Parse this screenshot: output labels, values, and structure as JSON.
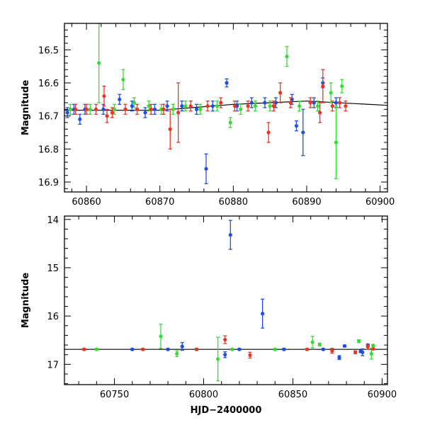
{
  "colors": {
    "blue": "#1f4fe0",
    "green": "#33dd33",
    "red": "#ee3322",
    "black": "#000000"
  },
  "chart_data": [
    {
      "type": "scatter",
      "panel": "top",
      "title": "",
      "xlabel": "",
      "ylabel": "Magnitude",
      "xlim": [
        60857,
        60901
      ],
      "ylim": [
        16.93,
        16.42
      ],
      "y_inverted": true,
      "xticks": [
        60860,
        60870,
        60880,
        60890,
        60900
      ],
      "yticks": [
        16.5,
        16.6,
        16.7,
        16.8,
        16.9
      ],
      "grid": false,
      "legend": "none",
      "trend_line": {
        "x": [
          60857,
          60870,
          60880,
          60890,
          60901
        ],
        "y": [
          16.683,
          16.683,
          16.665,
          16.655,
          16.668
        ]
      },
      "series": [
        {
          "color": "blue",
          "points": [
            [
              60857.4,
              16.69,
              0.015
            ],
            [
              60858.3,
              16.68,
              0.015
            ],
            [
              60859.1,
              16.71,
              0.015
            ],
            [
              60859.8,
              16.68,
              0.015
            ],
            [
              60862.3,
              16.68,
              0.015
            ],
            [
              60864.5,
              16.65,
              0.015
            ],
            [
              60866.2,
              16.67,
              0.015
            ],
            [
              60868.0,
              16.69,
              0.015
            ],
            [
              60869.3,
              16.68,
              0.015
            ],
            [
              60871.0,
              16.67,
              0.015
            ],
            [
              60873.0,
              16.67,
              0.015
            ],
            [
              60875.0,
              16.68,
              0.015
            ],
            [
              60876.3,
              16.86,
              0.045
            ],
            [
              60877.2,
              16.67,
              0.015
            ],
            [
              60879.1,
              16.6,
              0.012
            ],
            [
              60880.5,
              16.67,
              0.015
            ],
            [
              60882.5,
              16.66,
              0.015
            ],
            [
              60884.3,
              16.66,
              0.015
            ],
            [
              60885.8,
              16.66,
              0.015
            ],
            [
              60888.0,
              16.65,
              0.015
            ],
            [
              60888.6,
              16.73,
              0.015
            ],
            [
              60889.5,
              16.75,
              0.07
            ],
            [
              60891.0,
              16.66,
              0.015
            ],
            [
              60892.2,
              16.6,
              0.015
            ],
            [
              60894.0,
              16.66,
              0.015
            ]
          ]
        },
        {
          "color": "green",
          "points": [
            [
              60857.8,
              16.68,
              0.015
            ],
            [
              60860.5,
              16.68,
              0.015
            ],
            [
              60861.7,
              16.54,
              0.12
            ],
            [
              60863.8,
              16.68,
              0.015
            ],
            [
              60865.0,
              16.59,
              0.03
            ],
            [
              60866.5,
              16.66,
              0.015
            ],
            [
              60868.5,
              16.67,
              0.015
            ],
            [
              60870.2,
              16.68,
              0.015
            ],
            [
              60871.8,
              16.68,
              0.015
            ],
            [
              60873.5,
              16.67,
              0.015
            ],
            [
              60875.5,
              16.68,
              0.015
            ],
            [
              60877.8,
              16.67,
              0.015
            ],
            [
              60879.6,
              16.72,
              0.015
            ],
            [
              60881.0,
              16.68,
              0.015
            ],
            [
              60883.0,
              16.67,
              0.015
            ],
            [
              60885.0,
              16.67,
              0.015
            ],
            [
              60887.3,
              16.52,
              0.03
            ],
            [
              60889.0,
              16.67,
              0.015
            ],
            [
              60891.5,
              16.67,
              0.015
            ],
            [
              60893.3,
              16.63,
              0.03
            ],
            [
              60894.0,
              16.78,
              0.11
            ],
            [
              60894.8,
              16.61,
              0.02
            ]
          ]
        },
        {
          "color": "red",
          "points": [
            [
              60858.5,
              16.68,
              0.015
            ],
            [
              60860.0,
              16.68,
              0.015
            ],
            [
              60861.3,
              16.68,
              0.015
            ],
            [
              60862.4,
              16.64,
              0.03
            ],
            [
              60862.8,
              16.7,
              0.02
            ],
            [
              60863.5,
              16.69,
              0.015
            ],
            [
              60865.3,
              16.68,
              0.015
            ],
            [
              60866.9,
              16.68,
              0.015
            ],
            [
              60868.8,
              16.68,
              0.015
            ],
            [
              60870.5,
              16.68,
              0.015
            ],
            [
              60871.4,
              16.74,
              0.06
            ],
            [
              60872.5,
              16.69,
              0.09
            ],
            [
              60874.2,
              16.67,
              0.015
            ],
            [
              60876.5,
              16.67,
              0.015
            ],
            [
              60878.3,
              16.66,
              0.015
            ],
            [
              60880.2,
              16.67,
              0.015
            ],
            [
              60882.0,
              16.67,
              0.015
            ],
            [
              60884.8,
              16.75,
              0.03
            ],
            [
              60885.5,
              16.67,
              0.015
            ],
            [
              60886.4,
              16.63,
              0.03
            ],
            [
              60887.8,
              16.66,
              0.015
            ],
            [
              60890.5,
              16.66,
              0.015
            ],
            [
              60891.8,
              16.69,
              0.03
            ],
            [
              60892.2,
              16.61,
              0.05
            ],
            [
              60893.5,
              16.67,
              0.015
            ],
            [
              60894.5,
              16.66,
              0.015
            ],
            [
              60895.3,
              16.67,
              0.015
            ]
          ]
        }
      ]
    },
    {
      "type": "scatter",
      "panel": "bottom",
      "title": "",
      "xlabel": "HJD−2400000",
      "ylabel": "Magnitude",
      "xlim": [
        60722,
        60903
      ],
      "ylim": [
        17.42,
        13.93
      ],
      "y_inverted": true,
      "xticks": [
        60750,
        60800,
        60850,
        60900
      ],
      "yticks": [
        14,
        15,
        16,
        17
      ],
      "grid": false,
      "legend": "none",
      "trend_line": {
        "x": [
          60722,
          60903
        ],
        "y": [
          16.69,
          16.69
        ]
      },
      "series": [
        {
          "color": "blue",
          "points": [
            [
              60760,
              16.69,
              0.02
            ],
            [
              60780,
              16.69,
              0.02
            ],
            [
              60788,
              16.63,
              0.08
            ],
            [
              60812,
              16.8,
              0.06
            ],
            [
              60815,
              14.32,
              0.3
            ],
            [
              60820,
              16.69,
              0.02
            ],
            [
              60833,
              15.95,
              0.3
            ],
            [
              60845,
              16.69,
              0.02
            ],
            [
              60867,
              16.69,
              0.02
            ],
            [
              60876,
              16.86,
              0.04
            ],
            [
              60879,
              16.62,
              0.02
            ],
            [
              60888,
              16.73,
              0.03
            ],
            [
              60889,
              16.75,
              0.07
            ],
            [
              60892,
              16.6,
              0.02
            ]
          ]
        },
        {
          "color": "green",
          "points": [
            [
              60740,
              16.69,
              0.02
            ],
            [
              60776,
              16.42,
              0.25
            ],
            [
              60785,
              16.78,
              0.06
            ],
            [
              60808,
              16.89,
              0.45
            ],
            [
              60816,
              16.69,
              0.02
            ],
            [
              60840,
              16.69,
              0.02
            ],
            [
              60861,
              16.54,
              0.12
            ],
            [
              60865,
              16.59,
              0.03
            ],
            [
              60887,
              16.52,
              0.03
            ],
            [
              60894,
              16.78,
              0.11
            ],
            [
              60895,
              16.61,
              0.02
            ]
          ]
        },
        {
          "color": "red",
          "points": [
            [
              60733,
              16.69,
              0.02
            ],
            [
              60766,
              16.69,
              0.02
            ],
            [
              60796,
              16.69,
              0.02
            ],
            [
              60812,
              16.49,
              0.08
            ],
            [
              60826,
              16.81,
              0.06
            ],
            [
              60858,
              16.69,
              0.02
            ],
            [
              60872,
              16.72,
              0.05
            ],
            [
              60885,
              16.75,
              0.03
            ],
            [
              60892,
              16.64,
              0.05
            ],
            [
              60895,
              16.68,
              0.02
            ]
          ]
        }
      ]
    }
  ]
}
